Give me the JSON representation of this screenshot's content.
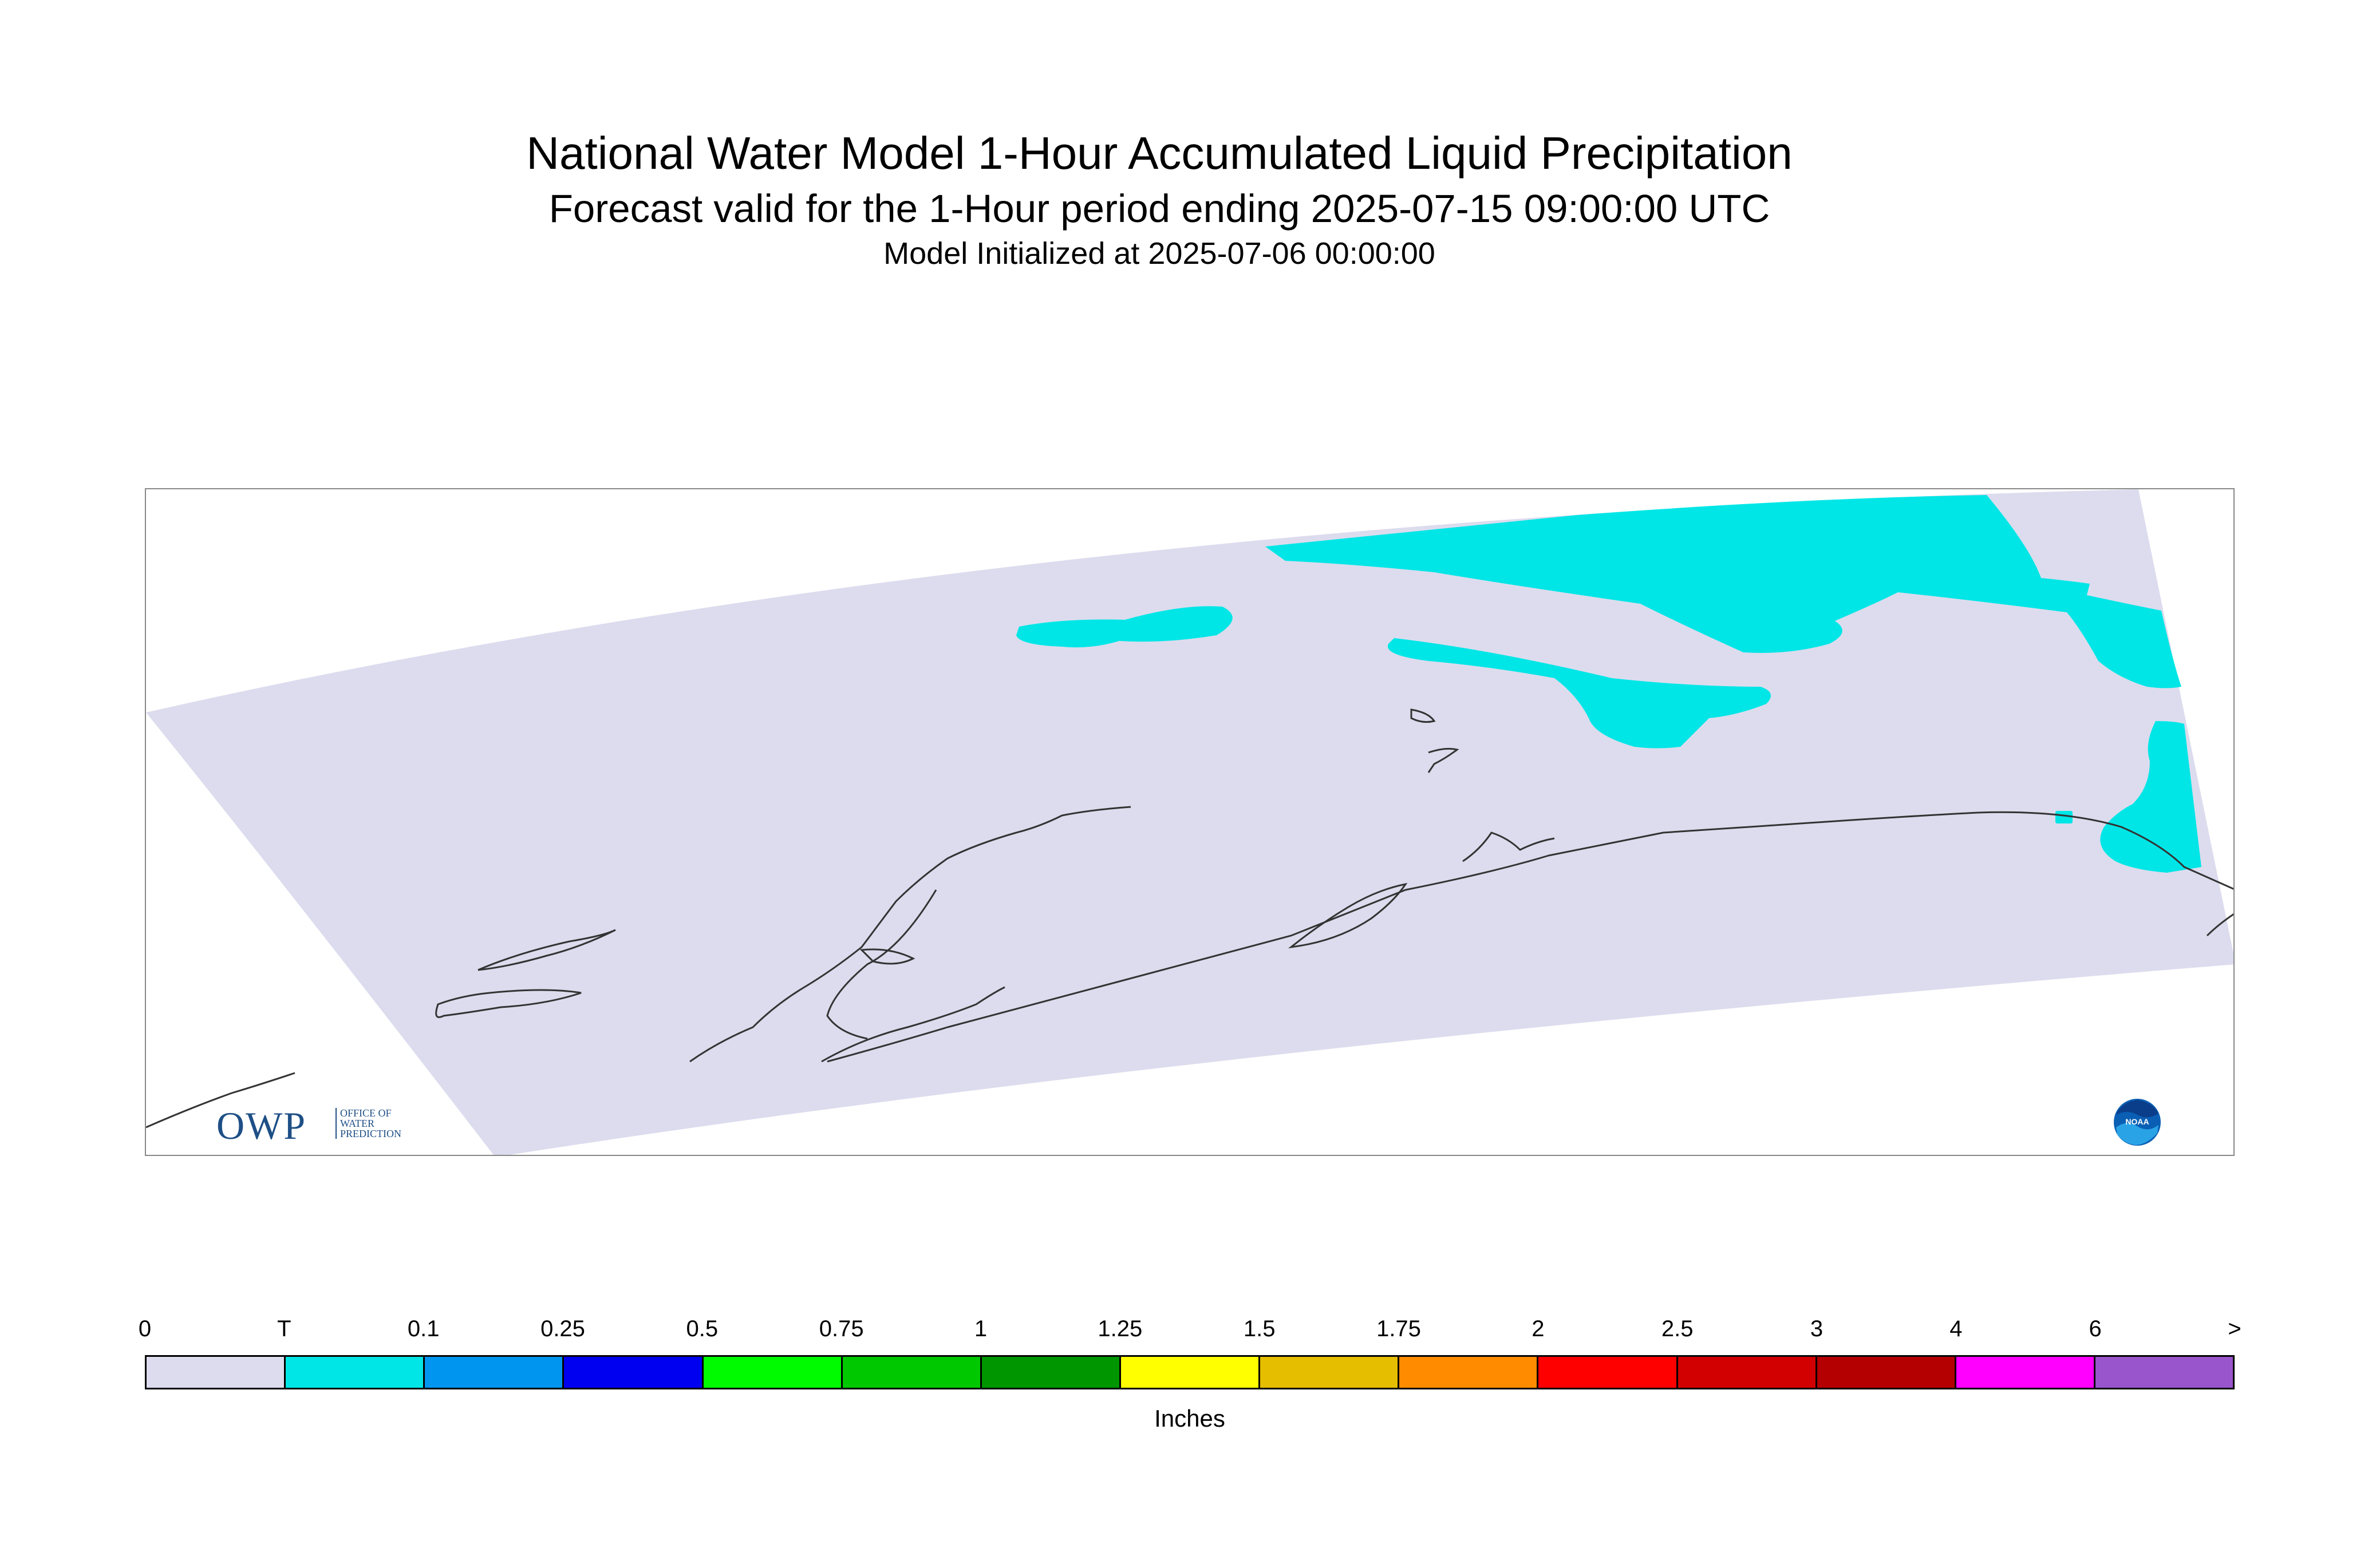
{
  "header": {
    "title": "National Water Model 1-Hour Accumulated Liquid Precipitation",
    "subtitle": "Forecast valid for the 1-Hour period ending 2025-07-15 09:00:00 UTC",
    "init": "Model Initialized at 2025-07-06 00:00:00"
  },
  "map": {
    "domain_color": "#dcdcee",
    "precip_color": "#00e6e6",
    "coastline_color": "#333333"
  },
  "logos": {
    "owp": {
      "letters": "OWP",
      "line1": "OFFICE OF",
      "line2": "WATER",
      "line3": "PREDICTION"
    },
    "noaa": {
      "text": "NOAA"
    }
  },
  "legend": {
    "tick_labels": [
      "0",
      "T",
      "0.1",
      "0.25",
      "0.5",
      "0.75",
      "1",
      "1.25",
      "1.5",
      "1.75",
      "2",
      "2.5",
      "3",
      "4",
      "6",
      ">"
    ],
    "colors": [
      "#dcdcee",
      "#00e6e6",
      "#0096f0",
      "#0000f0",
      "#00fa00",
      "#00c800",
      "#009600",
      "#ffff00",
      "#e6be00",
      "#ff8c00",
      "#ff0000",
      "#d20000",
      "#b40000",
      "#ff00ff",
      "#9955cc"
    ],
    "units": "Inches"
  }
}
